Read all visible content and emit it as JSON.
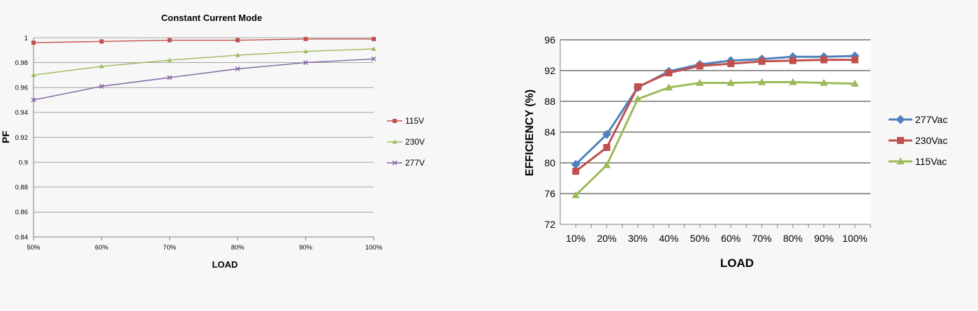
{
  "chart_data": [
    {
      "type": "line",
      "title": "Constant Current Mode",
      "xlabel": "LOAD",
      "ylabel": "PF",
      "categories": [
        "50%",
        "60%",
        "70%",
        "80%",
        "90%",
        "100%"
      ],
      "ylim": [
        0.84,
        1
      ],
      "yticks": [
        "0.84",
        "0.86",
        "0.88",
        "0.9",
        "0.92",
        "0.94",
        "0.96",
        "0.98",
        "1"
      ],
      "grid": true,
      "legend_position": "right",
      "series": [
        {
          "name": "115V",
          "values": [
            0.996,
            0.997,
            0.998,
            0.998,
            0.999,
            0.999
          ],
          "color": "#c0504d",
          "marker": "square"
        },
        {
          "name": "230V",
          "values": [
            0.97,
            0.977,
            0.982,
            0.986,
            0.989,
            0.991
          ],
          "color": "#9bbb59",
          "marker": "triangle"
        },
        {
          "name": "277V",
          "values": [
            0.95,
            0.961,
            0.968,
            0.975,
            0.98,
            0.983
          ],
          "color": "#8064a2",
          "marker": "x"
        }
      ]
    },
    {
      "type": "line",
      "title": "",
      "xlabel": "LOAD",
      "ylabel": "EFFICIENCY (%)",
      "categories": [
        "10%",
        "20%",
        "30%",
        "40%",
        "50%",
        "60%",
        "70%",
        "80%",
        "90%",
        "100%"
      ],
      "ylim": [
        72,
        96
      ],
      "yticks": [
        "72",
        "76",
        "80",
        "84",
        "88",
        "92",
        "96"
      ],
      "grid": true,
      "legend_position": "right",
      "series": [
        {
          "name": "277Vac",
          "values": [
            79.8,
            83.7,
            89.8,
            91.9,
            92.8,
            93.3,
            93.5,
            93.8,
            93.8,
            93.9
          ],
          "color": "#4f81bd",
          "marker": "diamond"
        },
        {
          "name": "230Vac",
          "values": [
            78.9,
            82.0,
            89.9,
            91.7,
            92.6,
            92.9,
            93.2,
            93.3,
            93.4,
            93.4
          ],
          "color": "#c0504d",
          "marker": "square"
        },
        {
          "name": "115Vac",
          "values": [
            75.8,
            79.7,
            88.3,
            89.8,
            90.4,
            90.4,
            90.5,
            90.5,
            90.4,
            90.3
          ],
          "color": "#9bbb59",
          "marker": "triangle"
        }
      ]
    }
  ]
}
